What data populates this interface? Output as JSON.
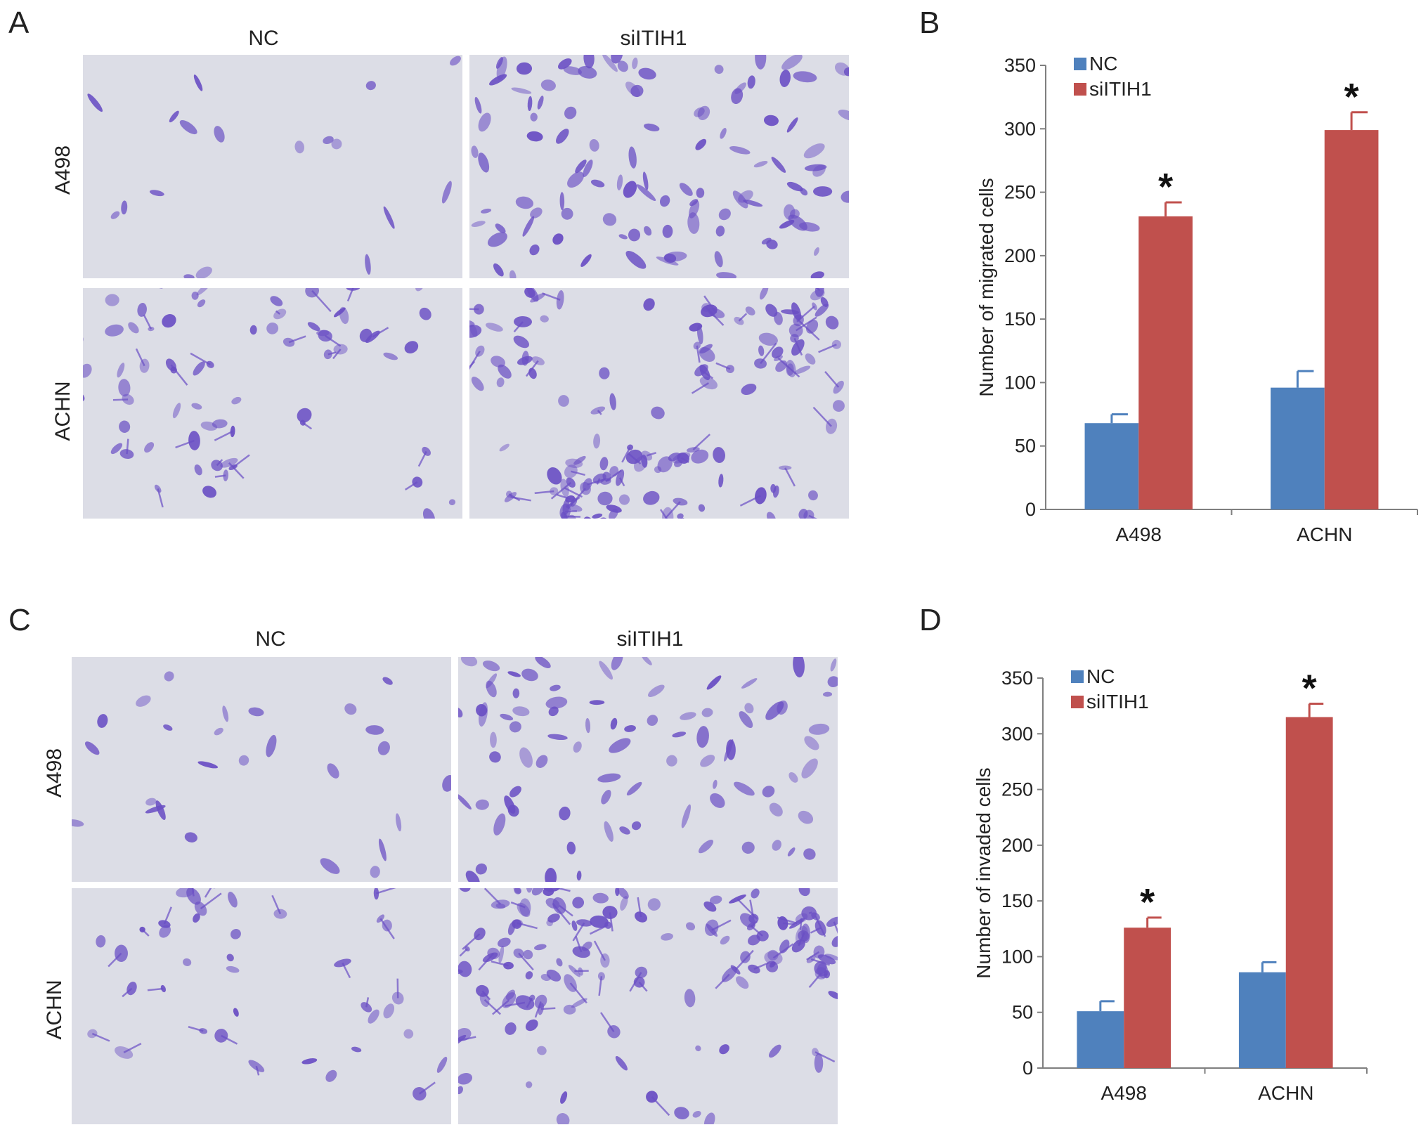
{
  "panels": {
    "A": {
      "letter": "A",
      "columns": [
        "NC",
        "siITIH1"
      ],
      "rows": [
        "A498",
        "ACHN"
      ]
    },
    "B": {
      "letter": "B"
    },
    "C": {
      "letter": "C",
      "columns": [
        "NC",
        "siITIH1"
      ],
      "rows": [
        "A498",
        "ACHN"
      ]
    },
    "D": {
      "letter": "D"
    }
  },
  "colors": {
    "NC": "#4f81bd",
    "siITIH1": "#c0504d",
    "stain": "#6a4fc4",
    "background": "#dcdde6"
  },
  "chart_data": [
    {
      "type": "bar",
      "panel": "B",
      "categories": [
        "A498",
        "ACHN"
      ],
      "series": [
        {
          "name": "NC",
          "values": [
            68,
            96
          ],
          "errors": [
            7,
            13
          ]
        },
        {
          "name": "siITIH1",
          "values": [
            231,
            299
          ],
          "errors": [
            11,
            14
          ]
        }
      ],
      "significance": [
        {
          "category": "A498",
          "series": "siITIH1",
          "mark": "*"
        },
        {
          "category": "ACHN",
          "series": "siITIH1",
          "mark": "*"
        }
      ],
      "ylabel": "Number of migrated cells",
      "xlabel": "",
      "ylim": [
        0,
        350
      ],
      "yticks": [
        0,
        50,
        100,
        150,
        200,
        250,
        300,
        350
      ],
      "legend": "top-left",
      "grid": false
    },
    {
      "type": "bar",
      "panel": "D",
      "categories": [
        "A498",
        "ACHN"
      ],
      "series": [
        {
          "name": "NC",
          "values": [
            51,
            86
          ],
          "errors": [
            9,
            9
          ]
        },
        {
          "name": "siITIH1",
          "values": [
            126,
            315
          ],
          "errors": [
            9,
            12
          ]
        }
      ],
      "significance": [
        {
          "category": "A498",
          "series": "siITIH1",
          "mark": "*"
        },
        {
          "category": "ACHN",
          "series": "siITIH1",
          "mark": "*"
        }
      ],
      "ylabel": "Number of invaded cells",
      "xlabel": "",
      "ylim": [
        0,
        350
      ],
      "yticks": [
        0,
        50,
        100,
        150,
        200,
        250,
        300,
        350
      ],
      "legend": "top-left",
      "grid": false
    }
  ]
}
